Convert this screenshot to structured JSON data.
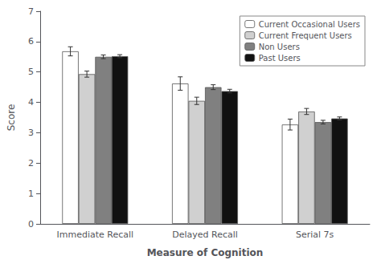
{
  "chart_data": {
    "type": "bar",
    "xlabel": "Measure of Cognition",
    "ylabel": "Score",
    "categories": [
      "Immediate Recall",
      "Delayed Recall",
      "Serial 7s"
    ],
    "series": [
      {
        "name": "Current Occasional Users",
        "color": "#ffffff",
        "values": [
          5.68,
          4.62,
          3.27
        ],
        "errors": [
          0.15,
          0.22,
          0.18
        ]
      },
      {
        "name": "Current Frequent Users",
        "color": "#d0d0d0",
        "values": [
          4.93,
          4.05,
          3.7
        ],
        "errors": [
          0.1,
          0.12,
          0.1
        ]
      },
      {
        "name": "Non Users",
        "color": "#808080",
        "values": [
          5.5,
          4.5,
          3.35
        ],
        "errors": [
          0.06,
          0.08,
          0.06
        ]
      },
      {
        "name": "Past Users",
        "color": "#111111",
        "values": [
          5.52,
          4.37,
          3.47
        ],
        "errors": [
          0.05,
          0.06,
          0.05
        ]
      }
    ],
    "ylim": [
      0,
      7
    ],
    "yticks": [
      0,
      1,
      2,
      3,
      4,
      5,
      6,
      7
    ],
    "legend": "upper right",
    "grid": false
  }
}
